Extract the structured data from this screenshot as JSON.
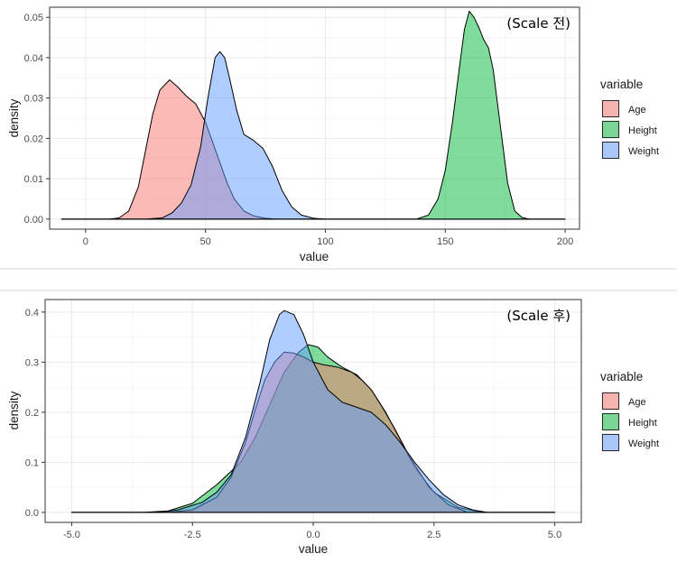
{
  "colors": {
    "Age": "#f8766d",
    "Height": "#00ba38",
    "Weight": "#619cff",
    "separator": "#d9d9d9"
  },
  "chart_data": [
    {
      "type": "area",
      "subtype": "density",
      "annotation": "(Scale 전)",
      "xlabel": "value",
      "ylabel": "density",
      "xlim": [
        -15,
        206
      ],
      "ylim": [
        -0.0025,
        0.0525
      ],
      "xticks": [
        0,
        50,
        100,
        150,
        200
      ],
      "xtick_labels": [
        "0",
        "50",
        "100",
        "150",
        "200"
      ],
      "yticks": [
        0,
        0.01,
        0.02,
        0.03,
        0.04,
        0.05
      ],
      "ytick_labels": [
        "0.00",
        "0.01",
        "0.02",
        "0.03",
        "0.04",
        "0.05"
      ],
      "grid": true,
      "legend": {
        "title": "variable",
        "position": "right",
        "entries": [
          "Age",
          "Height",
          "Weight"
        ]
      },
      "series": [
        {
          "name": "Age",
          "x": [
            -10,
            10,
            14,
            18,
            22,
            25,
            28,
            31,
            35,
            38,
            42,
            46,
            50,
            53,
            56,
            59,
            62,
            66,
            70,
            75,
            80,
            200
          ],
          "y": [
            0,
            0,
            0.0003,
            0.002,
            0.008,
            0.017,
            0.026,
            0.032,
            0.0345,
            0.033,
            0.0305,
            0.0285,
            0.024,
            0.019,
            0.014,
            0.009,
            0.005,
            0.002,
            0.0008,
            0.0002,
            0,
            0
          ]
        },
        {
          "name": "Weight",
          "x": [
            -10,
            25,
            32,
            36,
            40,
            44,
            48,
            51,
            54,
            56,
            58,
            60,
            63,
            66,
            70,
            74,
            78,
            82,
            86,
            90,
            95,
            100,
            200
          ],
          "y": [
            0,
            0,
            0.0003,
            0.0015,
            0.004,
            0.0085,
            0.018,
            0.03,
            0.04,
            0.0415,
            0.04,
            0.035,
            0.027,
            0.021,
            0.0195,
            0.0175,
            0.013,
            0.007,
            0.003,
            0.001,
            0.0002,
            0,
            0
          ]
        },
        {
          "name": "Height",
          "x": [
            -10,
            138,
            143,
            147,
            150,
            153,
            156,
            158,
            160,
            162,
            164,
            166,
            168,
            170,
            173,
            176,
            179,
            182,
            185,
            200
          ],
          "y": [
            0,
            0,
            0.001,
            0.005,
            0.012,
            0.024,
            0.038,
            0.047,
            0.0515,
            0.05,
            0.0475,
            0.0445,
            0.0425,
            0.037,
            0.023,
            0.009,
            0.002,
            0.0004,
            0,
            0
          ]
        }
      ]
    },
    {
      "type": "area",
      "subtype": "density",
      "annotation": "(Scale 후)",
      "xlabel": "value",
      "ylabel": "density",
      "xlim": [
        -5.55,
        5.55
      ],
      "ylim": [
        -0.02,
        0.425
      ],
      "xticks": [
        -5,
        -2.5,
        0,
        2.5,
        5
      ],
      "xtick_labels": [
        "-5.0",
        "-2.5",
        "0.0",
        "2.5",
        "5.0"
      ],
      "yticks": [
        0,
        0.1,
        0.2,
        0.3,
        0.4
      ],
      "ytick_labels": [
        "0.0",
        "0.1",
        "0.2",
        "0.3",
        "0.4"
      ],
      "grid": true,
      "legend": {
        "title": "variable",
        "position": "right",
        "entries": [
          "Age",
          "Height",
          "Weight"
        ]
      },
      "series": [
        {
          "name": "Height",
          "x": [
            -5,
            -3.5,
            -3.0,
            -2.5,
            -2.0,
            -1.5,
            -1.2,
            -0.9,
            -0.6,
            -0.3,
            -0.1,
            0.1,
            0.3,
            0.6,
            0.9,
            1.2,
            1.5,
            1.8,
            2.1,
            2.5,
            3.0,
            3.5,
            5
          ],
          "y": [
            0,
            0,
            0.003,
            0.018,
            0.055,
            0.1,
            0.15,
            0.215,
            0.28,
            0.32,
            0.335,
            0.33,
            0.31,
            0.29,
            0.275,
            0.245,
            0.2,
            0.145,
            0.09,
            0.04,
            0.01,
            0,
            0
          ]
        },
        {
          "name": "Age",
          "x": [
            -5,
            -3.0,
            -2.5,
            -2.0,
            -1.7,
            -1.4,
            -1.2,
            -1.0,
            -0.8,
            -0.6,
            -0.4,
            -0.2,
            0,
            0.2,
            0.5,
            0.8,
            1.0,
            1.2,
            1.4,
            1.7,
            2.0,
            2.4,
            2.8,
            3.2,
            5
          ],
          "y": [
            0,
            0,
            0.005,
            0.03,
            0.07,
            0.14,
            0.205,
            0.265,
            0.3,
            0.32,
            0.318,
            0.31,
            0.3,
            0.295,
            0.29,
            0.28,
            0.265,
            0.245,
            0.215,
            0.165,
            0.11,
            0.05,
            0.015,
            0,
            0
          ]
        },
        {
          "name": "Weight",
          "x": [
            -5,
            -3.2,
            -2.8,
            -2.3,
            -2.0,
            -1.7,
            -1.4,
            -1.1,
            -0.9,
            -0.7,
            -0.6,
            -0.4,
            -0.2,
            0,
            0.3,
            0.6,
            0.9,
            1.2,
            1.5,
            1.8,
            2.1,
            2.4,
            2.7,
            3.0,
            3.3,
            3.6,
            5
          ],
          "y": [
            0,
            0,
            0.005,
            0.02,
            0.04,
            0.075,
            0.15,
            0.26,
            0.345,
            0.395,
            0.403,
            0.395,
            0.355,
            0.3,
            0.245,
            0.22,
            0.21,
            0.2,
            0.175,
            0.14,
            0.1,
            0.065,
            0.035,
            0.015,
            0.005,
            0,
            0
          ]
        }
      ]
    }
  ]
}
